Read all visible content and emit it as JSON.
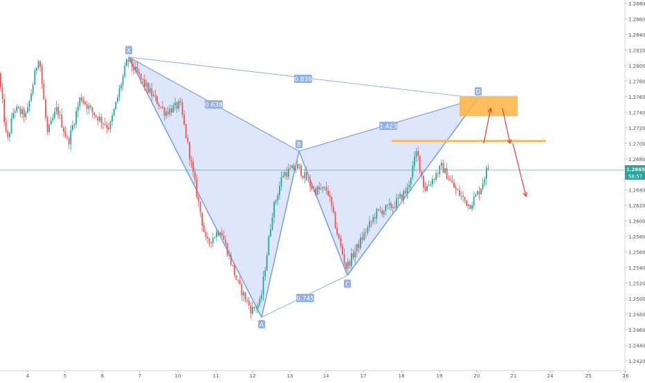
{
  "chart_data": {
    "type": "candlestick",
    "instrument_note": "",
    "y_axis": {
      "ylim": [
        1.2412,
        1.2888
      ],
      "ticks": [
        "1.28800",
        "1.28600",
        "1.28400",
        "1.28200",
        "1.28000",
        "1.27800",
        "1.27600",
        "1.27400",
        "1.27200",
        "1.27000",
        "1.26800",
        "1.26600",
        "1.26400",
        "1.26200",
        "1.26000",
        "1.25800",
        "1.25600",
        "1.25400",
        "1.25200",
        "1.25000",
        "1.24800",
        "1.24600",
        "1.24400",
        "1.24200"
      ],
      "position": "right"
    },
    "x_axis": {
      "ticks": [
        "4",
        "5",
        "6",
        "7",
        "10",
        "11",
        "12",
        "13",
        "14",
        "17",
        "18",
        "19",
        "20",
        "21",
        "24",
        "25",
        "26"
      ]
    },
    "last_price": {
      "value": 1.26656,
      "label": "1.26656",
      "countdown": "58:57",
      "color": "#26a69a"
    },
    "harmonic_pattern": {
      "points": [
        {
          "label": "X",
          "price": 1.2811
        },
        {
          "label": "A",
          "price": 1.2476
        },
        {
          "label": "B",
          "price": 1.269
        },
        {
          "label": "C",
          "price": 1.253
        },
        {
          "label": "D",
          "price": 1.2758
        }
      ],
      "ratios": [
        {
          "leg": "XB",
          "label": "0.638"
        },
        {
          "leg": "AC",
          "label": "0.745"
        },
        {
          "leg": "BD",
          "label": "1.423"
        },
        {
          "leg": "XD",
          "label": "0.839"
        }
      ],
      "fill_color": "#b3c8f3",
      "line_color": "#7aa0e6"
    },
    "zones": [
      {
        "type": "rectangle",
        "price_high": 1.2761,
        "price_low": 1.2735,
        "color": "#ffb74d"
      },
      {
        "type": "horizontal-line",
        "price": 1.2703,
        "color": "#ffb74d"
      }
    ],
    "arrows": [
      {
        "from": 1.27,
        "to": 1.2745,
        "direction": "up"
      },
      {
        "from": 1.2745,
        "to": 1.27,
        "direction": "down"
      },
      {
        "from": 1.27,
        "to": 1.2632,
        "direction": "down"
      }
    ],
    "colors": {
      "bull": "#26a69a",
      "bear": "#ef5350",
      "axis_text": "#555555",
      "current_line": "#26a69a"
    },
    "grid": false
  }
}
